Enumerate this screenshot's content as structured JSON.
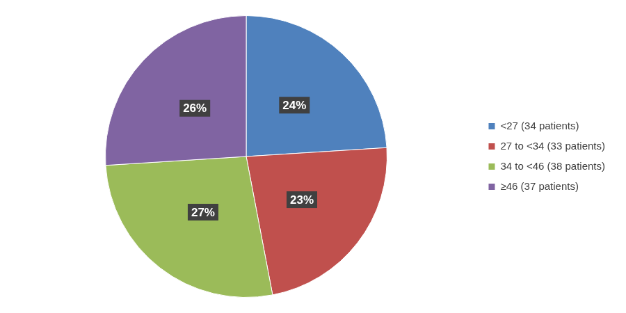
{
  "chart_data": {
    "type": "pie",
    "categories": [
      "<27 (34 patients)",
      "27 to <34 (33 patients)",
      "34 to <46 (38 patients)",
      "≥46 (37 patients)"
    ],
    "values": [
      24,
      23,
      27,
      26
    ],
    "value_labels": [
      "24%",
      "23%",
      "27%",
      "26%"
    ],
    "colors": [
      "#4f81bd",
      "#c0504d",
      "#9bbb59",
      "#8064a2"
    ],
    "data_labels": true,
    "legend": "right"
  }
}
